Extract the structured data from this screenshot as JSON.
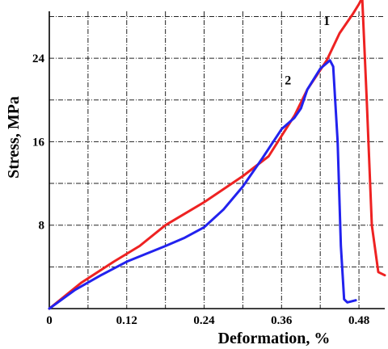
{
  "chart_data": {
    "type": "line",
    "title": "",
    "xlabel": "Deformation, %",
    "ylabel": "Stress, MPa",
    "xlim": [
      0,
      0.52
    ],
    "ylim": [
      0,
      28.5
    ],
    "grid": true,
    "x_tick_labels": [
      {
        "value": 0,
        "label": "0"
      },
      {
        "value": 0.12,
        "label": "0.12"
      },
      {
        "value": 0.24,
        "label": "0.24"
      },
      {
        "value": 0.36,
        "label": "0.36"
      },
      {
        "value": 0.48,
        "label": "0.48"
      }
    ],
    "y_tick_labels": [
      {
        "value": 8,
        "label": "8"
      },
      {
        "value": 16,
        "label": "16"
      },
      {
        "value": 24,
        "label": "24"
      }
    ],
    "x_grid": [
      0.06,
      0.12,
      0.18,
      0.24,
      0.3,
      0.36,
      0.42,
      0.48
    ],
    "y_grid": [
      4,
      8,
      12,
      16,
      20,
      24,
      28
    ],
    "series": [
      {
        "name": "1",
        "color": "#ee2222",
        "label_at": [
          0.43,
          27.2
        ],
        "points": [
          [
            0,
            0
          ],
          [
            0.05,
            2.5
          ],
          [
            0.1,
            4.5
          ],
          [
            0.14,
            6.0
          ],
          [
            0.18,
            8.0
          ],
          [
            0.24,
            10.2
          ],
          [
            0.3,
            12.7
          ],
          [
            0.34,
            14.6
          ],
          [
            0.38,
            18.5
          ],
          [
            0.4,
            21.0
          ],
          [
            0.43,
            23.8
          ],
          [
            0.45,
            26.4
          ],
          [
            0.47,
            28.2
          ],
          [
            0.48,
            29.2
          ],
          [
            0.485,
            29.8
          ],
          [
            0.492,
            20.0
          ],
          [
            0.5,
            8.0
          ],
          [
            0.51,
            3.5
          ],
          [
            0.52,
            3.2
          ]
        ]
      },
      {
        "name": "2",
        "color": "#2222ee",
        "label_at": [
          0.37,
          21.5
        ],
        "points": [
          [
            0,
            0
          ],
          [
            0.04,
            1.8
          ],
          [
            0.08,
            3.2
          ],
          [
            0.12,
            4.5
          ],
          [
            0.18,
            6.0
          ],
          [
            0.21,
            6.8
          ],
          [
            0.24,
            7.8
          ],
          [
            0.27,
            9.5
          ],
          [
            0.3,
            11.7
          ],
          [
            0.33,
            14.4
          ],
          [
            0.36,
            17.2
          ],
          [
            0.38,
            18.3
          ],
          [
            0.39,
            19.2
          ],
          [
            0.4,
            21.0
          ],
          [
            0.42,
            23.0
          ],
          [
            0.435,
            23.8
          ],
          [
            0.44,
            23.2
          ],
          [
            0.447,
            16.0
          ],
          [
            0.452,
            6.0
          ],
          [
            0.457,
            0.9
          ],
          [
            0.462,
            0.6
          ],
          [
            0.475,
            0.8
          ]
        ]
      }
    ]
  }
}
